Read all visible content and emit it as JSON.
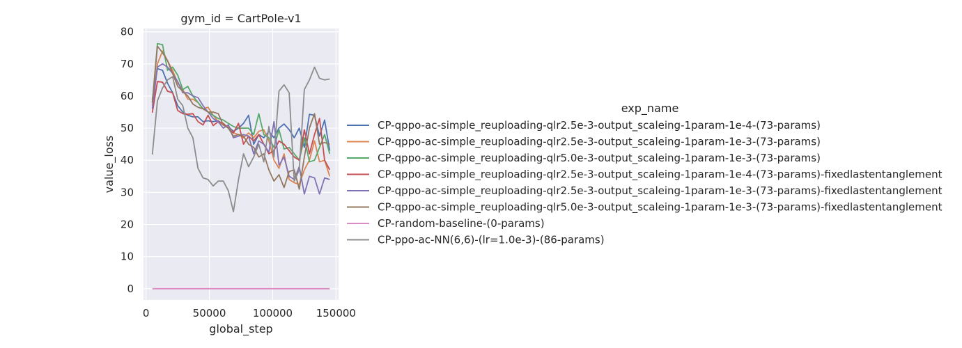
{
  "chart_data": {
    "type": "line",
    "title": "gym_id = CartPole-v1",
    "xlabel": "global_step",
    "ylabel": "value_loss",
    "xlim": [
      -2000,
      152000
    ],
    "ylim": [
      -3.5,
      81
    ],
    "xticks": [
      0,
      50000,
      100000,
      150000
    ],
    "xtick_labels": [
      "0",
      "50000",
      "100000",
      "150000"
    ],
    "yticks": [
      0,
      10,
      20,
      30,
      40,
      50,
      60,
      70,
      80
    ],
    "ytick_labels": [
      "0",
      "10",
      "20",
      "30",
      "40",
      "50",
      "60",
      "70",
      "80"
    ],
    "grid": true,
    "legend_title": "exp_name",
    "legend_position": "right",
    "x": [
      5000,
      9000,
      13000,
      17000,
      21000,
      25000,
      29000,
      33000,
      37000,
      41000,
      45000,
      49000,
      53000,
      57000,
      61000,
      65000,
      69000,
      73000,
      77000,
      81000,
      85000,
      89000,
      93000,
      97000,
      101000,
      105000,
      109000,
      113000,
      117000,
      121000,
      125000,
      129000,
      133000,
      137000,
      141000,
      145000
    ],
    "series": [
      {
        "name": "CP-qppo-ac-simple_reuploading-qlr2.5e-3-output_scaleing-1param-1e-4-(73-params)",
        "color": "#4c72b0",
        "values": [
          59,
          68.5,
          68,
          64,
          61,
          57,
          55,
          54,
          53.5,
          53.5,
          52,
          52.3,
          52,
          52.3,
          51,
          50.5,
          49,
          50,
          51.5,
          54,
          45,
          48,
          47,
          49,
          47,
          50,
          51.3,
          49.5,
          47,
          50,
          44,
          54.3,
          54,
          47.5,
          52.5,
          43
        ]
      },
      {
        "name": "CP-qppo-ac-simple_reuploading-qlr2.5e-3-output_scaleing-1param-1e-3-(73-params)",
        "color": "#dd8452",
        "values": [
          57,
          70,
          74,
          71,
          68,
          64,
          62,
          59,
          59,
          58,
          56,
          56.5,
          54,
          52,
          51,
          50.5,
          48.5,
          48,
          47,
          48.5,
          47,
          49,
          49.5,
          46,
          40,
          37.5,
          42,
          34,
          33,
          32.5,
          37,
          40,
          46,
          39.5,
          40,
          35
        ]
      },
      {
        "name": "CP-qppo-ac-simple_reuploading-qlr5.0e-3-output_scaleing-1param-1e-3-(73-params)",
        "color": "#55a868",
        "values": [
          58,
          76.3,
          76,
          68,
          69,
          66.5,
          62,
          63,
          60,
          58,
          56,
          55,
          54,
          53,
          52.5,
          51.5,
          50.5,
          50,
          50,
          50,
          48,
          54.5,
          48,
          47,
          44,
          49.5,
          43.5,
          44,
          42,
          40,
          47,
          39.5,
          40,
          44,
          48,
          42
        ]
      },
      {
        "name": "CP-qppo-ac-simple_reuploading-qlr2.5e-3-output_scaleing-1param-1e-4-(73-params)-fixedlastentanglement",
        "color": "#c44e52",
        "values": [
          54.8,
          64.5,
          64.3,
          61.5,
          61,
          55.5,
          54.5,
          54.3,
          54.5,
          52,
          51,
          54,
          50.8,
          52,
          51.5,
          50,
          48.5,
          51.5,
          45,
          47.5,
          46,
          48,
          45,
          42,
          43,
          46,
          45,
          43,
          41,
          40,
          49.5,
          42,
          48,
          53,
          40,
          37
        ]
      },
      {
        "name": "CP-qppo-ac-simple_reuploading-qlr2.5e-3-output_scaleing-1param-1e-3-(73-params)-fixedlastentanglement",
        "color": "#8172b3",
        "values": [
          56,
          69,
          70,
          69,
          67,
          64.5,
          61,
          61,
          60,
          59.5,
          57,
          55,
          53,
          52,
          50,
          51,
          47,
          47.5,
          48,
          47.5,
          42,
          46,
          45,
          42.5,
          52,
          38.5,
          41,
          35,
          34,
          38,
          29.5,
          35,
          34.5,
          29.5,
          34.5,
          34
        ]
      },
      {
        "name": "CP-qppo-ac-simple_reuploading-qlr5.0e-3-output_scaleing-1param-1e-3-(73-params)-fixedlastentanglement",
        "color": "#937860",
        "values": [
          58,
          75.5,
          73.5,
          71,
          67,
          63,
          61.5,
          60,
          57.5,
          56.5,
          56,
          55,
          55,
          54.5,
          51,
          50,
          47.5,
          48,
          47.5,
          45,
          44,
          41,
          42,
          37,
          33.5,
          35.5,
          31.5,
          36.5,
          37,
          31,
          41,
          50,
          54.5,
          45,
          45.5,
          45
        ]
      },
      {
        "name": "CP-random-baseline-(0-params)",
        "color": "#da8bc3",
        "values": [
          0,
          0,
          0,
          0,
          0,
          0,
          0,
          0,
          0,
          0,
          0,
          0,
          0,
          0,
          0,
          0,
          0,
          0,
          0,
          0,
          0,
          0,
          0,
          0,
          0,
          0,
          0,
          0,
          0,
          0,
          0,
          0,
          0,
          0,
          0,
          0
        ]
      },
      {
        "name": "CP-ppo-ac-NN(6,6)-(lr=1.0e-3)-(86-params)",
        "color": "#8c8c8c",
        "values": [
          41.8,
          58.5,
          62.5,
          65,
          66,
          59,
          57,
          50,
          47,
          37.5,
          34.5,
          34,
          32,
          33.5,
          33.5,
          30.5,
          24,
          34,
          42,
          38,
          41,
          45,
          39.5,
          50.5,
          41,
          61.5,
          63.5,
          61,
          33.5,
          37,
          62,
          65,
          69,
          65.5,
          65,
          65.3
        ]
      }
    ]
  }
}
